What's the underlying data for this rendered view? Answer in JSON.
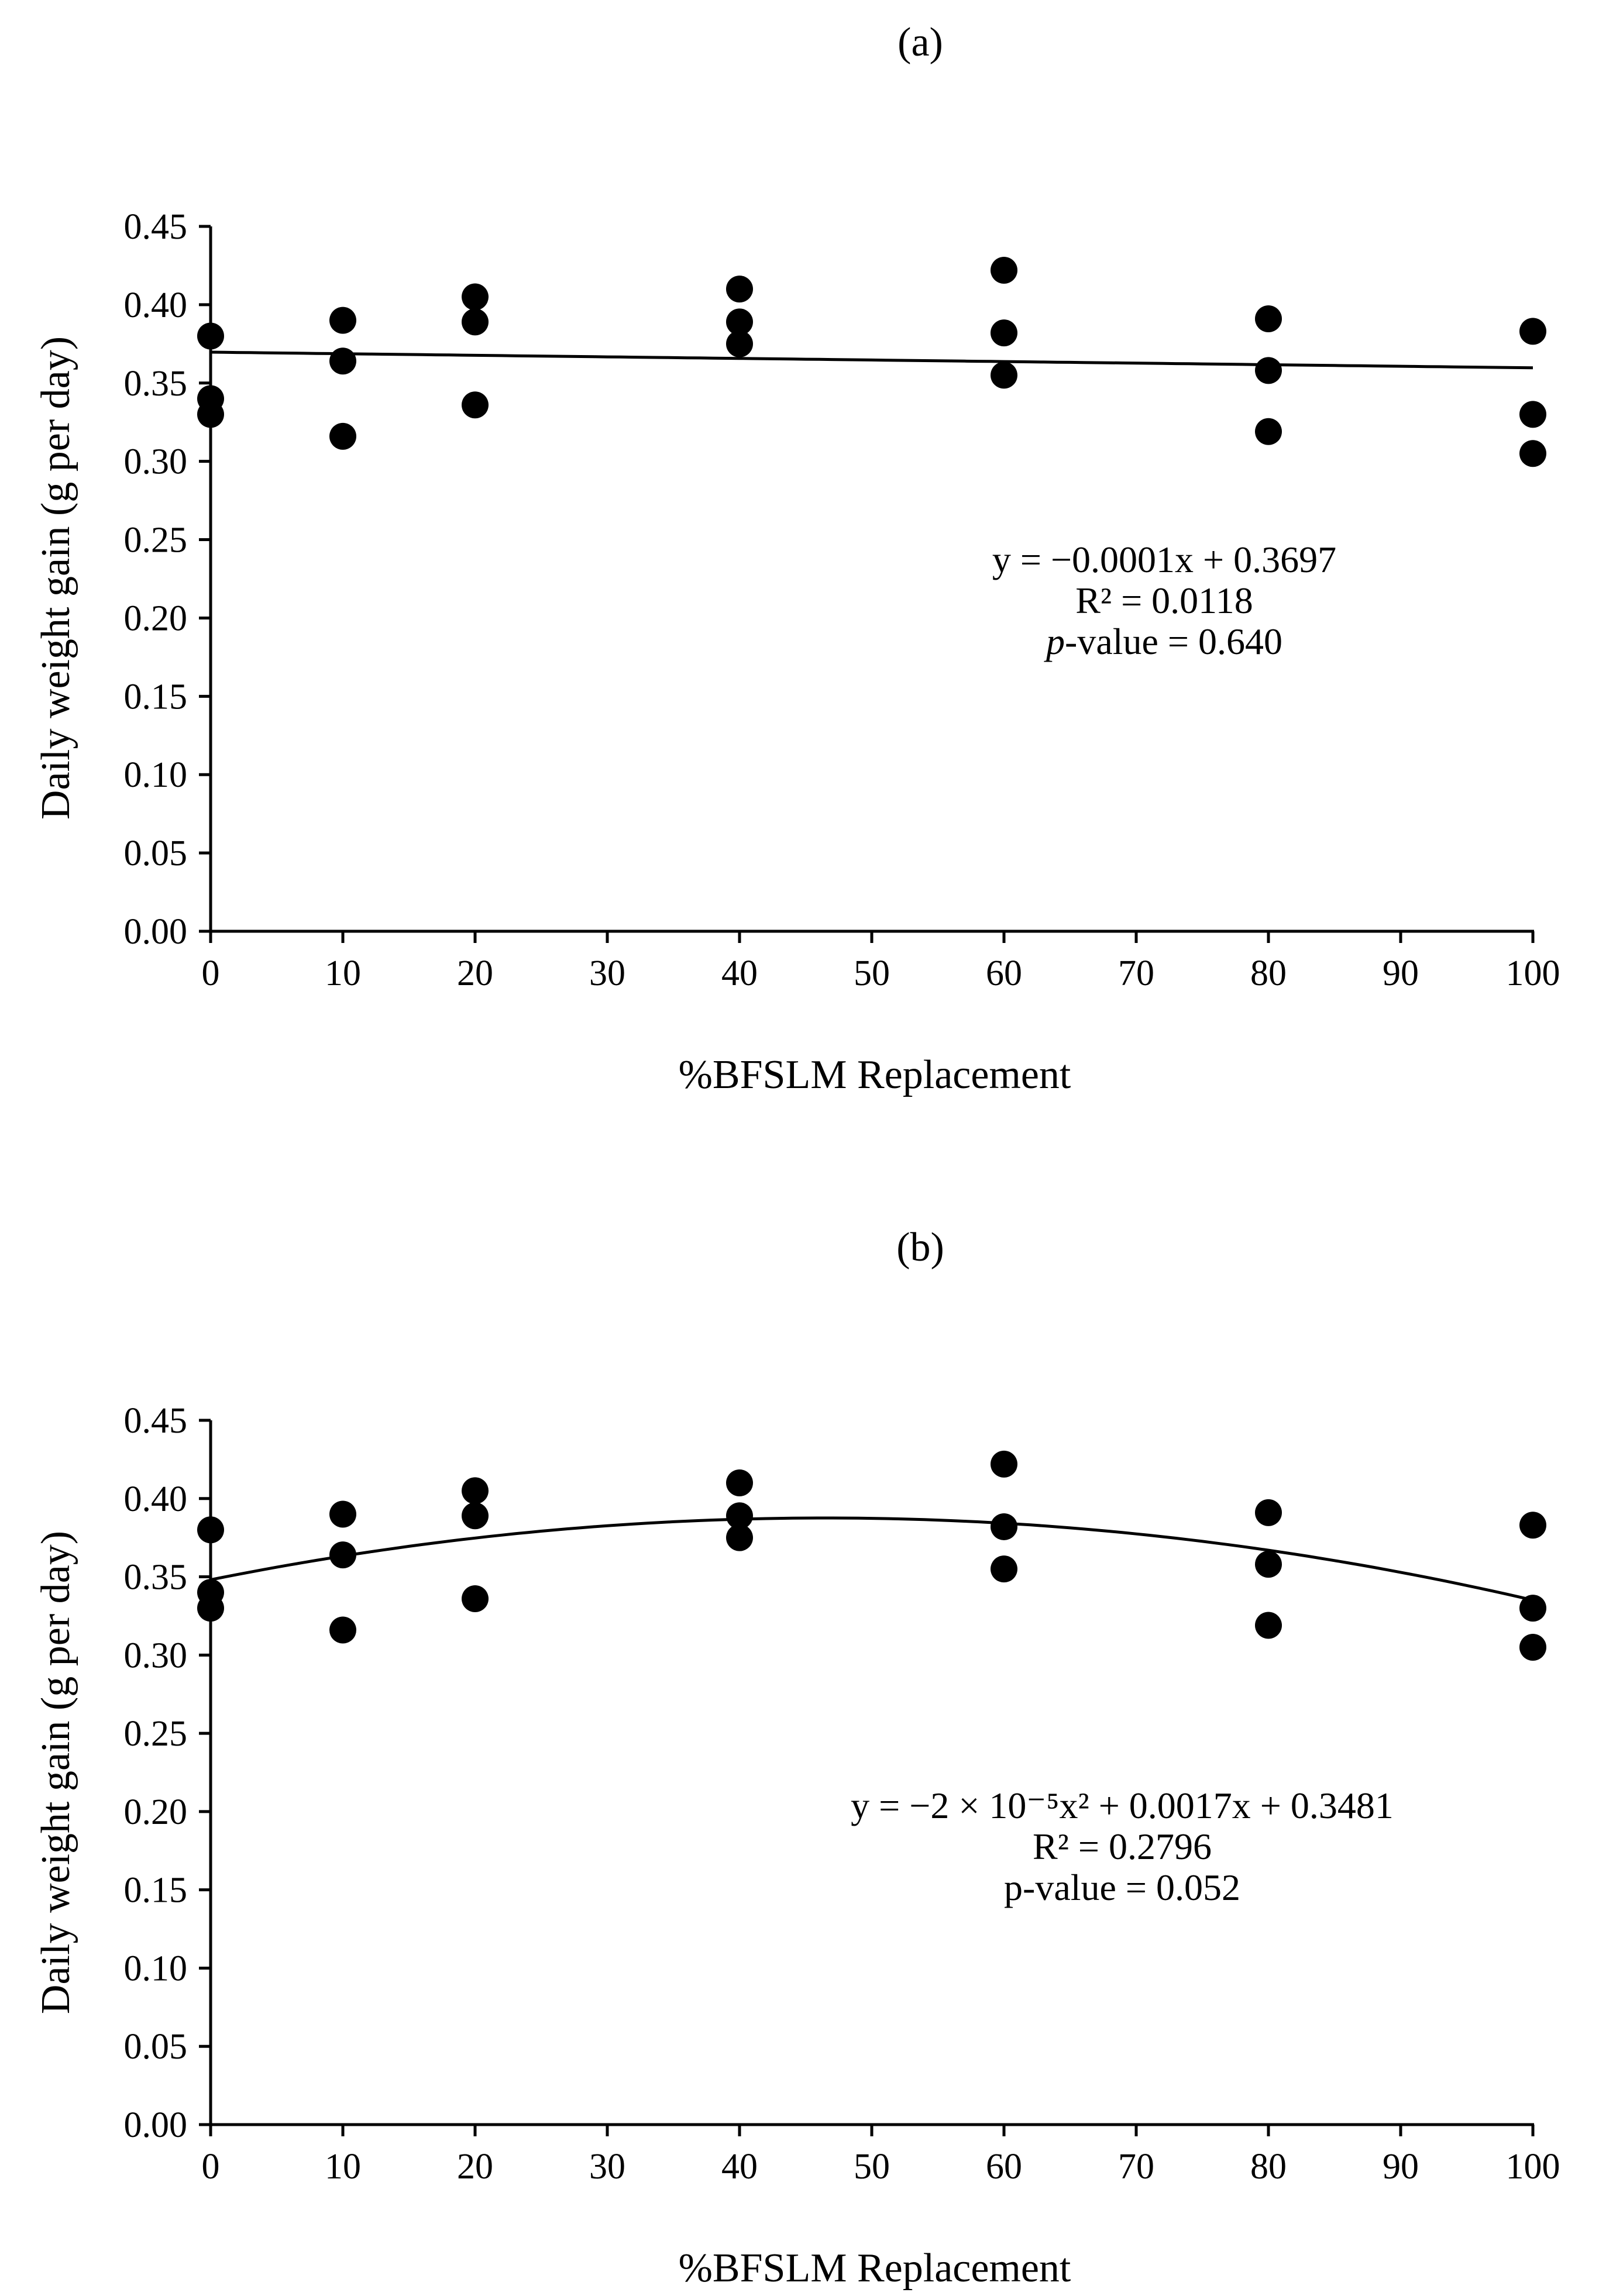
{
  "chart_data": [
    {
      "type": "scatter",
      "panel_label": "(a)",
      "xlabel": "%BFSLM Replacement",
      "ylabel": "Daily weight gain (g per day)",
      "xlim": [
        0,
        100
      ],
      "ylim": [
        0,
        0.45
      ],
      "x_ticks": [
        "0",
        "10",
        "20",
        "30",
        "40",
        "50",
        "60",
        "70",
        "80",
        "90",
        "100"
      ],
      "y_ticks": [
        "0.00",
        "0.05",
        "0.10",
        "0.15",
        "0.20",
        "0.25",
        "0.30",
        "0.35",
        "0.40",
        "0.45"
      ],
      "points": [
        [
          0,
          0.38
        ],
        [
          0,
          0.34
        ],
        [
          0,
          0.33
        ],
        [
          10,
          0.39
        ],
        [
          10,
          0.364
        ],
        [
          10,
          0.316
        ],
        [
          20,
          0.405
        ],
        [
          20,
          0.389
        ],
        [
          20,
          0.336
        ],
        [
          40,
          0.41
        ],
        [
          40,
          0.389
        ],
        [
          40,
          0.375
        ],
        [
          60,
          0.422
        ],
        [
          60,
          0.382
        ],
        [
          60,
          0.355
        ],
        [
          80,
          0.391
        ],
        [
          80,
          0.358
        ],
        [
          80,
          0.319
        ],
        [
          100,
          0.383
        ],
        [
          100,
          0.33
        ],
        [
          100,
          0.305
        ]
      ],
      "trendline": {
        "type": "linear",
        "coefficients": [
          -0.0001,
          0.3697
        ]
      },
      "annotation": {
        "equation": "y = −0.0001x + 0.3697",
        "r_squared": "R² = 0.0118",
        "p_prefix": "p",
        "p_suffix": "-value = 0.640"
      }
    },
    {
      "type": "scatter",
      "panel_label": "(b)",
      "xlabel": "%BFSLM Replacement",
      "ylabel": "Daily weight gain (g per day)",
      "xlim": [
        0,
        100
      ],
      "ylim": [
        0,
        0.45
      ],
      "x_ticks": [
        "0",
        "10",
        "20",
        "30",
        "40",
        "50",
        "60",
        "70",
        "80",
        "90",
        "100"
      ],
      "y_ticks": [
        "0.00",
        "0.05",
        "0.10",
        "0.15",
        "0.20",
        "0.25",
        "0.30",
        "0.35",
        "0.40",
        "0.45"
      ],
      "points": [
        [
          0,
          0.38
        ],
        [
          0,
          0.34
        ],
        [
          0,
          0.33
        ],
        [
          10,
          0.39
        ],
        [
          10,
          0.364
        ],
        [
          10,
          0.316
        ],
        [
          20,
          0.405
        ],
        [
          20,
          0.389
        ],
        [
          20,
          0.336
        ],
        [
          40,
          0.41
        ],
        [
          40,
          0.389
        ],
        [
          40,
          0.375
        ],
        [
          60,
          0.422
        ],
        [
          60,
          0.382
        ],
        [
          60,
          0.355
        ],
        [
          80,
          0.391
        ],
        [
          80,
          0.358
        ],
        [
          80,
          0.319
        ],
        [
          100,
          0.383
        ],
        [
          100,
          0.33
        ],
        [
          100,
          0.305
        ]
      ],
      "trendline": {
        "type": "quadratic",
        "coefficients": [
          -1.83e-05,
          0.0017,
          0.3481
        ]
      },
      "annotation": {
        "equation": "y = −2 × 10⁻⁵x² + 0.0017x + 0.3481",
        "r_squared": "R² = 0.2796",
        "p_value": "p-value = 0.052"
      }
    }
  ]
}
